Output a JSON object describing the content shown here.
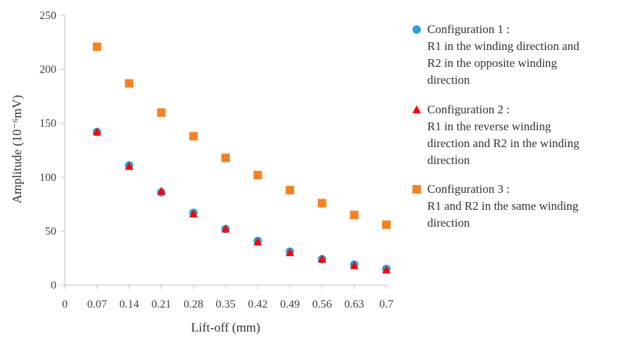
{
  "chart_data": {
    "type": "scatter",
    "title": "",
    "xlabel": "Lift-off (mm)",
    "ylabel": "Amplitude (10⁻⁶mV)",
    "xlim": [
      0,
      0.7
    ],
    "ylim": [
      0,
      250
    ],
    "x_ticks": [
      "0",
      "0.07",
      "0.14",
      "0.21",
      "0.28",
      "0.35",
      "0.42",
      "0.49",
      "0.56",
      "0.63",
      "0.7"
    ],
    "y_ticks": [
      "0",
      "50",
      "100",
      "150",
      "200",
      "250"
    ],
    "grid": false,
    "legend_position": "right",
    "x": [
      0.07,
      0.14,
      0.21,
      0.28,
      0.35,
      0.42,
      0.49,
      0.56,
      0.63,
      0.7
    ],
    "series": [
      {
        "name": "Configuration 1 :",
        "description": [
          "R1 in the winding direction and",
          "R2 in the opposite winding",
          "direction"
        ],
        "marker": "circle",
        "color": "#2E9FD8",
        "values": [
          142,
          111,
          86,
          67,
          52,
          41,
          31,
          24,
          19,
          15
        ]
      },
      {
        "name": "Configuration 2 :",
        "description": [
          "R1 in the reverse winding",
          "direction and R2 in the winding",
          "direction"
        ],
        "marker": "triangle",
        "color": "#FF0000",
        "values": [
          142,
          110,
          87,
          66,
          52,
          40,
          30,
          24,
          18,
          14
        ]
      },
      {
        "name": "Configuration 3 :",
        "description": [
          "R1 and R2 in the same winding",
          "direction"
        ],
        "marker": "square",
        "color": "#F58220",
        "values": [
          221,
          187,
          160,
          138,
          118,
          102,
          88,
          76,
          65,
          56
        ]
      }
    ]
  }
}
